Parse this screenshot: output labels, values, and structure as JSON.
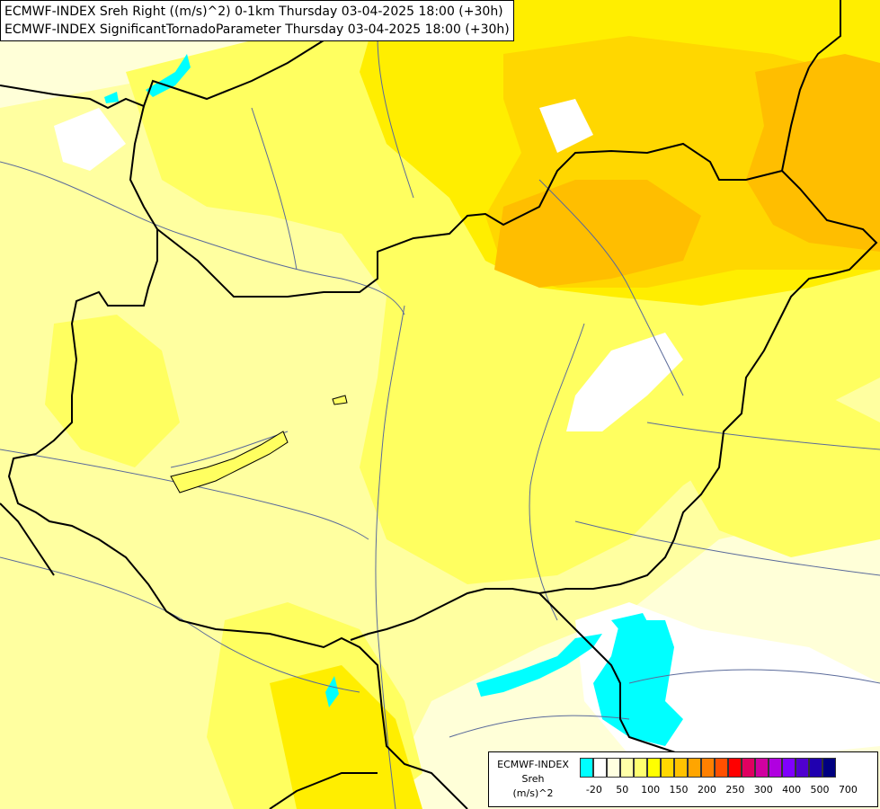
{
  "title": {
    "line1": "ECMWF-INDEX Sreh Right ((m/s)^2) 0-1km Thursday 03-04-2025 18:00 (+30h)",
    "line2": "ECMWF-INDEX SignificantTornadoParameter Thursday 03-04-2025 18:00 (+30h)"
  },
  "legend": {
    "line1": "ECMWF-INDEX",
    "line2": "Sreh",
    "line3": "(m/s)^2",
    "swatch_colors": [
      "#00ffff",
      "#ffffff",
      "#ffffe0",
      "#ffffa8",
      "#ffff70",
      "#ffff00",
      "#ffd700",
      "#ffc200",
      "#ffa500",
      "#ff8000",
      "#ff5000",
      "#ff0000",
      "#e00060",
      "#d000a0",
      "#b000e0",
      "#8000ff",
      "#5000d0",
      "#2000b0",
      "#000080"
    ],
    "ticks": [
      "-20",
      "50",
      "100",
      "150",
      "200",
      "250",
      "300",
      "400",
      "500",
      "700"
    ]
  },
  "map_colors": {
    "background": "#ffffd8",
    "light_yellow": "#ffffa0",
    "yellow": "#ffff60",
    "bright_yellow": "#ffee00",
    "gold": "#ffd700",
    "orange": "#ffbe00",
    "cyan": "#00ffff",
    "white": "#ffffff",
    "border_line": "#000000",
    "river_line": "#5a6a9a"
  }
}
